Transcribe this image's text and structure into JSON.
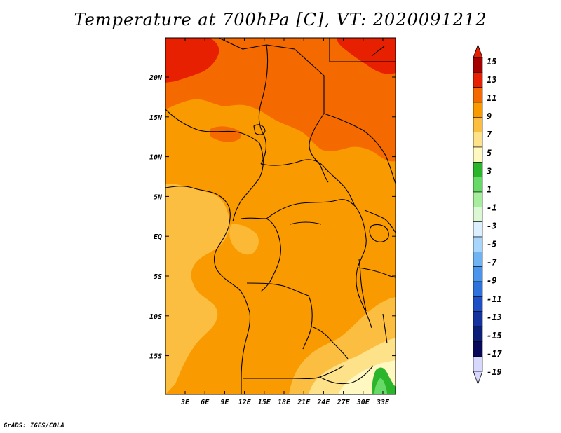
{
  "title": "Temperature at 700hPa [C], VT: 2020091212",
  "credit": "GrADS: IGES/COLA",
  "map": {
    "lon_ticks": [
      "3E",
      "6E",
      "9E",
      "12E",
      "15E",
      "18E",
      "21E",
      "24E",
      "27E",
      "30E",
      "33E"
    ],
    "lat_ticks": [
      "20N",
      "15N",
      "10N",
      "5N",
      "EQ",
      "5S",
      "10S",
      "15S"
    ]
  },
  "colorbar": {
    "labels": [
      "15",
      "13",
      "11",
      "9",
      "7",
      "5",
      "3",
      "1",
      "-1",
      "-3",
      "-5",
      "-7",
      "-9",
      "-11",
      "-13",
      "-15",
      "-17",
      "-19"
    ],
    "colors": [
      "#a50000",
      "#e62000",
      "#f56a00",
      "#f99a00",
      "#fbbe40",
      "#fde28a",
      "#fff8c0",
      "#2bb52b",
      "#66d966",
      "#a6ee9e",
      "#dcf7d4",
      "#dcefff",
      "#a7d5fb",
      "#70b3f3",
      "#4b96ec",
      "#2e73dc",
      "#1f4fc6",
      "#14339e",
      "#0c1f78",
      "#08085a",
      "#d8d8ff"
    ],
    "top_arrow_color": "#e62000",
    "bottom_arrow_color": "#d8d8ff"
  }
}
